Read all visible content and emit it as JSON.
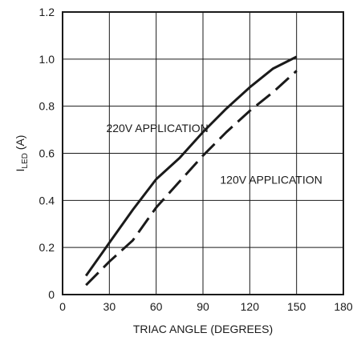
{
  "chart_data": {
    "type": "line",
    "xlabel": "TRIAC ANGLE (DEGREES)",
    "ylabel": {
      "main": "I",
      "sub": "LED",
      "suffix": " (A)"
    },
    "xlim": [
      0,
      180
    ],
    "ylim": [
      0,
      1.2
    ],
    "x_ticks": [
      0,
      30,
      60,
      90,
      120,
      150,
      180
    ],
    "x_tick_labels": [
      "0",
      "30",
      "60",
      "90",
      "120",
      "150",
      "180"
    ],
    "y_ticks": [
      0,
      0.2,
      0.4,
      0.6,
      0.8,
      1.0,
      1.2
    ],
    "y_tick_labels": [
      "0",
      "0.2",
      "0.4",
      "0.6",
      "0.8",
      "1.0",
      "1.2"
    ],
    "grid": true,
    "series": [
      {
        "name": "220V APPLICATION",
        "line_style": "solid",
        "label_at": [
          28,
          0.69
        ],
        "x": [
          15,
          30,
          45,
          60,
          75,
          90,
          105,
          120,
          135,
          150
        ],
        "y": [
          0.08,
          0.22,
          0.36,
          0.49,
          0.58,
          0.69,
          0.79,
          0.88,
          0.96,
          1.01
        ]
      },
      {
        "name": "120V APPLICATION",
        "line_style": "dashed",
        "label_at": [
          101,
          0.47
        ],
        "x": [
          15,
          30,
          45,
          60,
          75,
          90,
          105,
          120,
          135,
          150
        ],
        "y": [
          0.04,
          0.14,
          0.23,
          0.37,
          0.48,
          0.59,
          0.69,
          0.78,
          0.86,
          0.95
        ]
      }
    ]
  }
}
